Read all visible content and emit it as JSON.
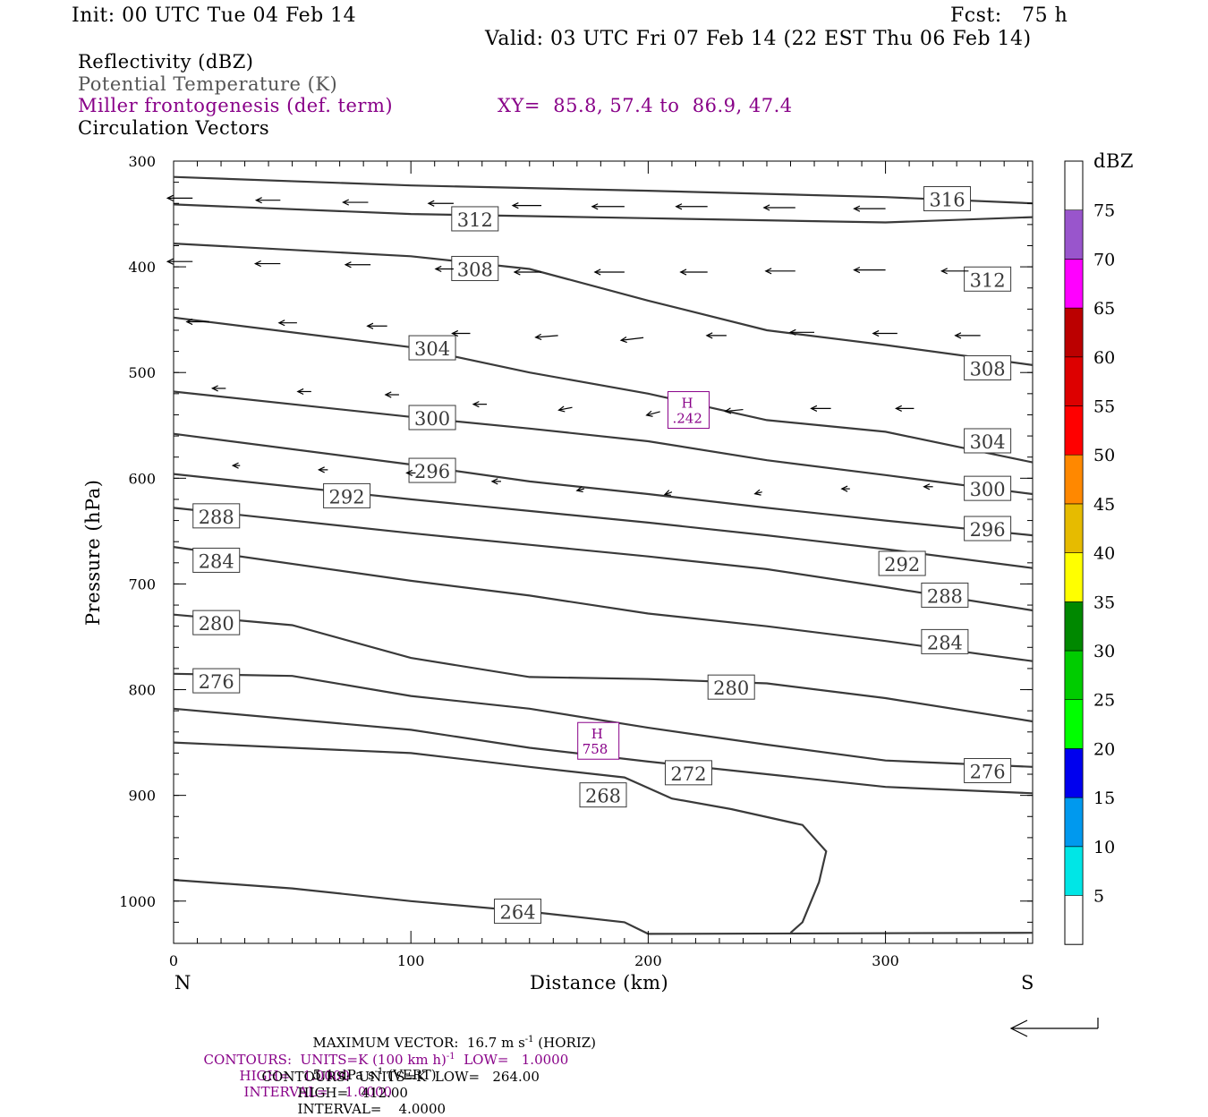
{
  "header": {
    "init": "Init: 00 UTC Tue 04 Feb 14",
    "fcst": "Fcst:   75 h",
    "valid": "Valid: 03 UTC Fri 07 Feb 14 (22 EST Thu 06 Feb 14)"
  },
  "fields": {
    "reflectivity": "Reflectivity (dBZ)",
    "theta": "Potential Temperature (K)",
    "frontogenesis": "Miller frontogenesis (def. term)",
    "xy": "XY=  85.8, 57.4 to  86.9, 47.4",
    "vectors": "Circulation Vectors"
  },
  "colorbar": {
    "title": "dBZ",
    "levels": [
      "5",
      "10",
      "15",
      "20",
      "25",
      "30",
      "35",
      "40",
      "45",
      "50",
      "55",
      "60",
      "65",
      "70",
      "75"
    ],
    "colors": [
      "#00e6e6",
      "#0099ee",
      "#0000ee",
      "#00ff00",
      "#00cc00",
      "#008800",
      "#ffff00",
      "#e6bb00",
      "#ff8800",
      "#ff0000",
      "#dd0000",
      "#bb0000",
      "#ff00ff",
      "#9955cc"
    ]
  },
  "footer": {
    "maxvec_a": "MAXIMUM VECTOR:  16.7 m s",
    "maxvec_b": " (HORIZ)",
    "maxvec_c": "5.1 dPa s",
    "maxvec_d": " (VERT)",
    "sup": "-1",
    "c1_a": "CONTOURS:  UNITS=K (100 km h)",
    "c1_b": "  LOW=   1.0000",
    "c1_c": "HIGH=   1.0000",
    "c1_d": "INTERVAL=    1.0000",
    "c2_a": "CONTOURS:  UNITS=K  LOW=   264.00",
    "c2_b": "HIGH=   412.00",
    "c2_c": "INTERVAL=    4.0000"
  },
  "chart_data": {
    "type": "line",
    "xlabel": "Distance (km)",
    "ylabel": "Pressure (hPa)",
    "x_left_label": "N",
    "x_right_label": "S",
    "xlim": [
      0,
      362
    ],
    "ylim": [
      1040,
      300
    ],
    "xticks": [
      "0",
      "100",
      "200",
      "300"
    ],
    "yticks": [
      "300",
      "400",
      "500",
      "600",
      "700",
      "800",
      "900",
      "1000"
    ],
    "theta_contours": [
      {
        "name": "316",
        "points": [
          [
            0,
            315
          ],
          [
            100,
            323
          ],
          [
            200,
            328
          ],
          [
            300,
            334
          ],
          [
            362,
            340
          ]
        ],
        "labels": [
          [
            326,
            336
          ]
        ]
      },
      {
        "name": "312",
        "points": [
          [
            0,
            341
          ],
          [
            100,
            350
          ],
          [
            200,
            354
          ],
          [
            300,
            358
          ],
          [
            362,
            353
          ]
        ],
        "labels": [
          [
            127,
            355
          ],
          [
            343,
            412
          ]
        ]
      },
      {
        "name": "308",
        "points": [
          [
            0,
            378
          ],
          [
            100,
            390
          ],
          [
            150,
            402
          ],
          [
            200,
            432
          ],
          [
            250,
            460
          ],
          [
            300,
            474
          ],
          [
            362,
            493
          ]
        ],
        "labels": [
          [
            127,
            402
          ],
          [
            343,
            496
          ]
        ]
      },
      {
        "name": "304",
        "points": [
          [
            0,
            448
          ],
          [
            100,
            476
          ],
          [
            150,
            500
          ],
          [
            200,
            520
          ],
          [
            250,
            545
          ],
          [
            300,
            556
          ],
          [
            362,
            585
          ]
        ],
        "labels": [
          [
            109,
            477
          ],
          [
            343,
            565
          ]
        ]
      },
      {
        "name": "300",
        "points": [
          [
            0,
            518
          ],
          [
            100,
            542
          ],
          [
            150,
            553
          ],
          [
            200,
            565
          ],
          [
            250,
            583
          ],
          [
            300,
            597
          ],
          [
            362,
            615
          ]
        ],
        "labels": [
          [
            109,
            543
          ],
          [
            343,
            610
          ]
        ]
      },
      {
        "name": "296",
        "points": [
          [
            0,
            558
          ],
          [
            100,
            587
          ],
          [
            150,
            603
          ],
          [
            200,
            615
          ],
          [
            250,
            628
          ],
          [
            300,
            640
          ],
          [
            362,
            654
          ]
        ],
        "labels": [
          [
            109,
            593
          ],
          [
            343,
            648
          ]
        ]
      },
      {
        "name": "292",
        "points": [
          [
            0,
            596
          ],
          [
            100,
            620
          ],
          [
            150,
            631
          ],
          [
            200,
            642
          ],
          [
            250,
            654
          ],
          [
            300,
            667
          ],
          [
            362,
            685
          ]
        ],
        "labels": [
          [
            73,
            617
          ],
          [
            307,
            681
          ]
        ]
      },
      {
        "name": "288",
        "points": [
          [
            0,
            628
          ],
          [
            100,
            652
          ],
          [
            150,
            663
          ],
          [
            200,
            674
          ],
          [
            250,
            686
          ],
          [
            300,
            703
          ],
          [
            362,
            725
          ]
        ],
        "labels": [
          [
            18,
            636
          ],
          [
            325,
            711
          ]
        ]
      },
      {
        "name": "284",
        "points": [
          [
            0,
            665
          ],
          [
            100,
            697
          ],
          [
            150,
            711
          ],
          [
            200,
            728
          ],
          [
            250,
            740
          ],
          [
            300,
            754
          ],
          [
            362,
            773
          ]
        ],
        "labels": [
          [
            18,
            678
          ],
          [
            325,
            755
          ]
        ]
      },
      {
        "name": "280",
        "points": [
          [
            0,
            729
          ],
          [
            50,
            739
          ],
          [
            100,
            770
          ],
          [
            150,
            788
          ],
          [
            200,
            790
          ],
          [
            250,
            794
          ],
          [
            300,
            808
          ],
          [
            362,
            830
          ]
        ],
        "labels": [
          [
            18,
            737
          ],
          [
            235,
            798
          ]
        ]
      },
      {
        "name": "276",
        "points": [
          [
            0,
            785
          ],
          [
            50,
            787
          ],
          [
            100,
            806
          ],
          [
            150,
            818
          ],
          [
            200,
            836
          ],
          [
            250,
            852
          ],
          [
            300,
            867
          ],
          [
            362,
            873
          ]
        ],
        "labels": [
          [
            18,
            792
          ],
          [
            343,
            877
          ]
        ]
      },
      {
        "name": "272",
        "points": [
          [
            0,
            818
          ],
          [
            100,
            838
          ],
          [
            150,
            855
          ],
          [
            200,
            868
          ],
          [
            250,
            880
          ],
          [
            300,
            892
          ],
          [
            362,
            898
          ]
        ],
        "labels": [
          [
            217,
            879
          ]
        ]
      },
      {
        "name": "268",
        "points": [
          [
            0,
            850
          ],
          [
            100,
            860
          ],
          [
            150,
            873
          ],
          [
            190,
            883
          ],
          [
            210,
            903
          ],
          [
            235,
            913
          ],
          [
            265,
            928
          ],
          [
            275,
            953
          ],
          [
            272,
            982
          ],
          [
            265,
            1020
          ],
          [
            260,
            1030
          ]
        ],
        "labels": [
          [
            181,
            900
          ]
        ]
      },
      {
        "name": "264",
        "points": [
          [
            0,
            980
          ],
          [
            50,
            988
          ],
          [
            100,
            1000
          ],
          [
            150,
            1010
          ],
          [
            190,
            1020
          ],
          [
            200,
            1031
          ],
          [
            362,
            1030
          ]
        ],
        "labels": [
          [
            145,
            1010
          ]
        ]
      }
    ],
    "frontogenesis_maxima": [
      {
        "label": "H",
        "value": ".242",
        "x": 217,
        "p": 535
      },
      {
        "label": "H",
        "value": "758",
        "x": 179,
        "p": 848
      }
    ],
    "vectors": [
      {
        "x": 8,
        "p": 335,
        "dx": -28,
        "dy": 0
      },
      {
        "x": 45,
        "p": 337,
        "dx": -27,
        "dy": 0
      },
      {
        "x": 82,
        "p": 339,
        "dx": -28,
        "dy": 0
      },
      {
        "x": 118,
        "p": 340,
        "dx": -28,
        "dy": 0
      },
      {
        "x": 155,
        "p": 342,
        "dx": -32,
        "dy": 0
      },
      {
        "x": 190,
        "p": 343,
        "dx": -36,
        "dy": 0
      },
      {
        "x": 225,
        "p": 343,
        "dx": -35,
        "dy": 0
      },
      {
        "x": 262,
        "p": 344,
        "dx": -35,
        "dy": 0
      },
      {
        "x": 300,
        "p": 345,
        "dx": -35,
        "dy": 0
      },
      {
        "x": 8,
        "p": 395,
        "dx": -28,
        "dy": 0
      },
      {
        "x": 45,
        "p": 397,
        "dx": -28,
        "dy": 0
      },
      {
        "x": 83,
        "p": 398,
        "dx": -28,
        "dy": 0
      },
      {
        "x": 118,
        "p": 402,
        "dx": -20,
        "dy": 0
      },
      {
        "x": 155,
        "p": 405,
        "dx": -30,
        "dy": 0
      },
      {
        "x": 190,
        "p": 405,
        "dx": -33,
        "dy": 0
      },
      {
        "x": 225,
        "p": 405,
        "dx": -30,
        "dy": 0
      },
      {
        "x": 262,
        "p": 404,
        "dx": -33,
        "dy": 0
      },
      {
        "x": 300,
        "p": 403,
        "dx": -35,
        "dy": 0
      },
      {
        "x": 335,
        "p": 404,
        "dx": -30,
        "dy": 0
      },
      {
        "x": 15,
        "p": 452,
        "dx": -25,
        "dy": 0
      },
      {
        "x": 52,
        "p": 453,
        "dx": -20,
        "dy": 0
      },
      {
        "x": 90,
        "p": 456,
        "dx": -22,
        "dy": 0
      },
      {
        "x": 125,
        "p": 463,
        "dx": -20,
        "dy": 0
      },
      {
        "x": 162,
        "p": 465,
        "dx": -25,
        "dy": 2
      },
      {
        "x": 198,
        "p": 467,
        "dx": -25,
        "dy": 3
      },
      {
        "x": 233,
        "p": 465,
        "dx": -22,
        "dy": 0
      },
      {
        "x": 270,
        "p": 462,
        "dx": -27,
        "dy": 0
      },
      {
        "x": 305,
        "p": 463,
        "dx": -27,
        "dy": 0
      },
      {
        "x": 340,
        "p": 465,
        "dx": -28,
        "dy": 0
      },
      {
        "x": 22,
        "p": 515,
        "dx": -15,
        "dy": 0
      },
      {
        "x": 58,
        "p": 518,
        "dx": -15,
        "dy": 0
      },
      {
        "x": 95,
        "p": 521,
        "dx": -15,
        "dy": 0
      },
      {
        "x": 132,
        "p": 530,
        "dx": -15,
        "dy": 0
      },
      {
        "x": 168,
        "p": 533,
        "dx": -15,
        "dy": 3
      },
      {
        "x": 205,
        "p": 537,
        "dx": -15,
        "dy": 4
      },
      {
        "x": 240,
        "p": 535,
        "dx": -20,
        "dy": 2
      },
      {
        "x": 277,
        "p": 534,
        "dx": -22,
        "dy": 0
      },
      {
        "x": 312,
        "p": 534,
        "dx": -20,
        "dy": 0
      },
      {
        "x": 28,
        "p": 588,
        "dx": -8,
        "dy": 0
      },
      {
        "x": 65,
        "p": 592,
        "dx": -10,
        "dy": 0
      },
      {
        "x": 102,
        "p": 595,
        "dx": -10,
        "dy": 0
      },
      {
        "x": 138,
        "p": 603,
        "dx": -10,
        "dy": 0
      },
      {
        "x": 173,
        "p": 610,
        "dx": -8,
        "dy": 2
      },
      {
        "x": 210,
        "p": 613,
        "dx": -8,
        "dy": 3
      },
      {
        "x": 248,
        "p": 613,
        "dx": -8,
        "dy": 2
      },
      {
        "x": 285,
        "p": 610,
        "dx": -9,
        "dy": 0
      },
      {
        "x": 320,
        "p": 608,
        "dx": -10,
        "dy": 0
      }
    ]
  }
}
